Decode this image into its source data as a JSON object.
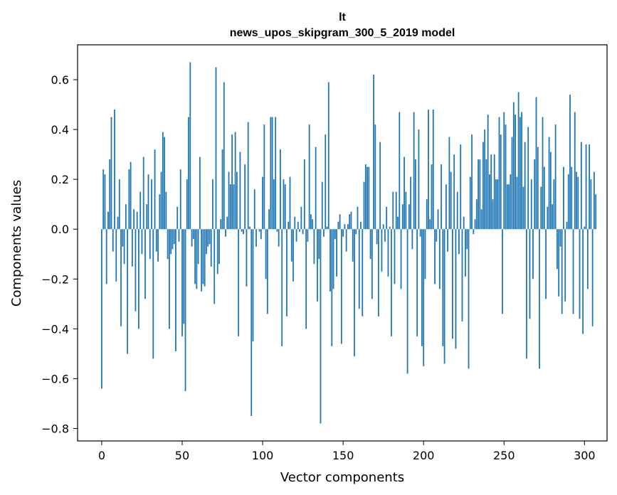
{
  "chart_data": {
    "type": "bar",
    "title": "lt",
    "subtitle": "news_upos_skipgram_300_5_2019 model",
    "xlabel": "Vector components",
    "ylabel": "Components values",
    "xlim": [
      -15,
      314
    ],
    "ylim": [
      -0.85,
      0.74
    ],
    "xticks": [
      0,
      50,
      100,
      150,
      200,
      250,
      300
    ],
    "yticks": [
      -0.8,
      -0.6,
      -0.4,
      -0.2,
      0.0,
      0.2,
      0.4,
      0.6
    ],
    "ytick_labels": [
      "−0.8",
      "−0.6",
      "−0.4",
      "−0.2",
      "0.0",
      "0.2",
      "0.4",
      "0.6"
    ],
    "bar_color": "#1f77b4",
    "grid": false,
    "values": [
      -0.64,
      0.24,
      0.22,
      -0.22,
      0.07,
      0.28,
      0.45,
      -0.09,
      0.48,
      -0.21,
      0.05,
      0.2,
      -0.39,
      -0.07,
      -0.14,
      0.1,
      -0.5,
      0.24,
      0.27,
      -0.15,
      0.08,
      -0.33,
      0.07,
      -0.4,
      0.15,
      -0.1,
      0.29,
      -0.28,
      0.1,
      0.22,
      -0.12,
      0.2,
      -0.52,
      0.32,
      -0.09,
      -0.13,
      0.14,
      0.23,
      0.39,
      0.37,
      0.15,
      -0.12,
      -0.4,
      -0.1,
      -0.08,
      -0.06,
      -0.49,
      0.09,
      -0.05,
      0.24,
      -0.43,
      -0.38,
      -0.65,
      0.2,
      0.45,
      0.67,
      -0.07,
      -0.04,
      -0.22,
      -0.24,
      -0.14,
      0.29,
      -0.25,
      -0.22,
      -0.23,
      -0.1,
      -0.07,
      -0.06,
      -0.15,
      0.2,
      -0.3,
      0.65,
      -0.18,
      -0.14,
      0.04,
      0.32,
      0.59,
      -0.03,
      0.05,
      0.23,
      0.18,
      0.38,
      0.18,
      0.39,
      0.23,
      -0.43,
      0.31,
      -0.01,
      -0.02,
      0.26,
      -0.23,
      0.43,
      0.01,
      -0.75,
      -0.45,
      0.16,
      -0.07,
      0.0,
      -0.01,
      -0.04,
      0.21,
      0.42,
      -0.2,
      -0.34,
      0.08,
      0.45,
      0.45,
      0.2,
      0.45,
      -0.01,
      -0.07,
      0.32,
      -0.47,
      0.2,
      0.18,
      -0.35,
      0.03,
      0.21,
      -0.13,
      -0.21,
      0.05,
      -0.05,
      0.03,
      -0.01,
      0.09,
      -0.02,
      0.28,
      -0.4,
      -0.05,
      0.42,
      0.06,
      0.04,
      -0.14,
      0.33,
      -0.29,
      -0.12,
      -0.78,
      0.19,
      -0.03,
      0.38,
      0.01,
      0.59,
      -0.25,
      -0.47,
      -0.24,
      -0.04,
      -0.19,
      0.03,
      0.06,
      -0.46,
      -0.03,
      0.02,
      -0.09,
      0.02,
      0.06,
      0.07,
      -0.13,
      -0.51,
      -0.02,
      0.09,
      -0.32,
      0.03,
      -0.35,
      0.19,
      0.26,
      0.25,
      0.25,
      -0.12,
      -0.28,
      0.62,
      0.42,
      -0.06,
      -0.35,
      0.35,
      -0.17,
      0.02,
      -0.05,
      0.09,
      -0.19,
      0.01,
      -0.43,
      0.15,
      -0.22,
      0.15,
      0.05,
      0.47,
      -0.24,
      0.1,
      0.29,
      0.15,
      -0.58,
      0.1,
      0.21,
      -0.08,
      0.47,
      0.28,
      -0.43,
      0.4,
      -0.03,
      -0.47,
      -0.55,
      -0.2,
      0.12,
      0.48,
      0.04,
      0.26,
      0.48,
      -0.22,
      -0.05,
      0.08,
      -0.24,
      0.26,
      -0.47,
      -0.54,
      0.18,
      -0.09,
      0.37,
      0.23,
      -0.44,
      0.3,
      -0.48,
      0.15,
      -0.1,
      0.34,
      -0.37,
      0.05,
      -0.19,
      -0.08,
      -0.56,
      0.21,
      0.38,
      -0.02,
      0.04,
      0.12,
      0.28,
      0.28,
      0.08,
      0.35,
      0.4,
      0.28,
      0.46,
      0.22,
      0.3,
      0.12,
      0.3,
      0.2,
      0.2,
      0.45,
      0.38,
      -0.34,
      0.47,
      0.42,
      0.18,
      0.18,
      0.22,
      0.37,
      0.51,
      0.46,
      0.21,
      0.55,
      0.45,
      0.47,
      0.17,
      0.35,
      -0.52,
      0.41,
      -0.36,
      0.2,
      -0.2,
      0.28,
      0.53,
      0.33,
      -0.56,
      0.17,
      0.45,
      0.25,
      -0.28,
      0.09,
      0.37,
      0.31,
      0.1,
      0.2,
      0.42,
      -0.16,
      -0.27,
      -0.07,
      -0.34,
      0.25,
      -0.29,
      0.03,
      0.22,
      0.54,
      0.25,
      -0.34,
      0.47,
      0.23,
      0.21,
      -0.36,
      0.35,
      -0.42,
      0.01,
      0.34,
      -0.24,
      0.34,
      0.2,
      -0.39,
      0.23,
      0.14
    ]
  }
}
